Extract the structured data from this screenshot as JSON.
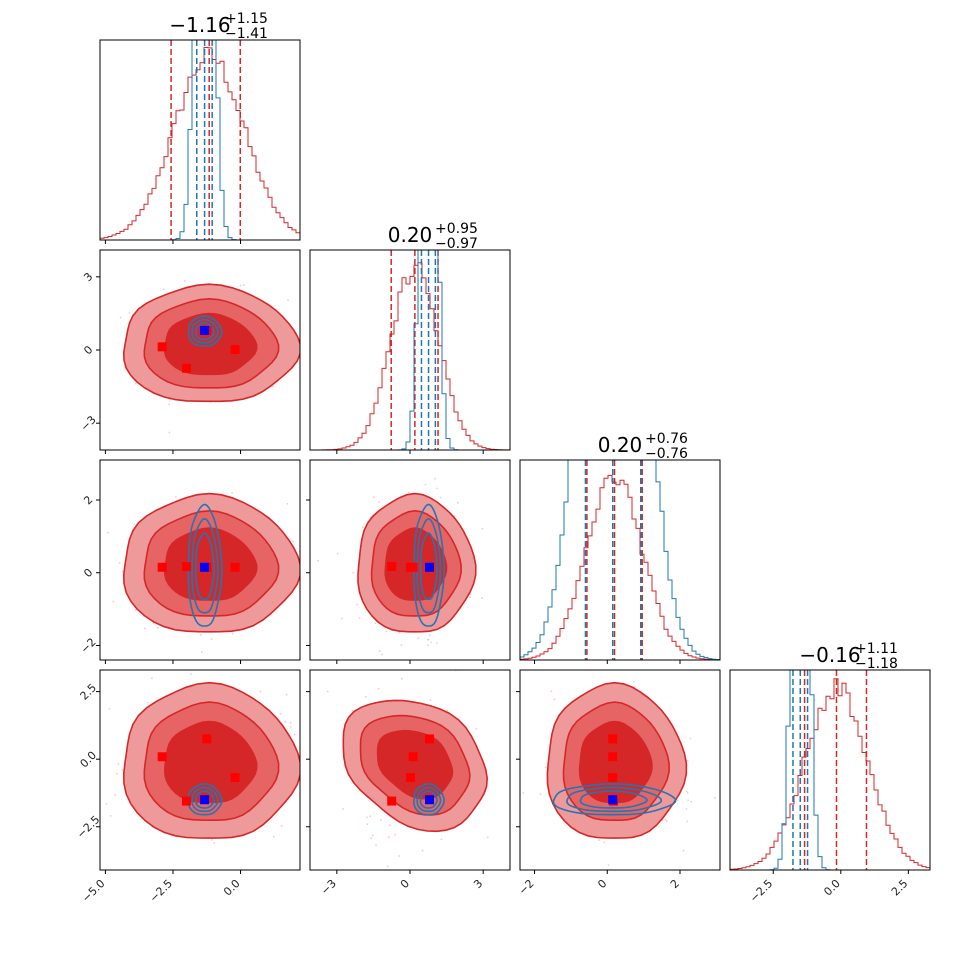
{
  "chart_data": {
    "type": "corner",
    "n_params": 4,
    "grid": false,
    "colors": {
      "red": "#d62728",
      "red_light": "#ee9a9b",
      "red_mid": "#e76465",
      "blue": "#1f77b4",
      "marker_blue": "#0000ff",
      "marker_red": "#ff0000"
    },
    "axes": [
      {
        "range": [
          -5.2,
          2.2
        ],
        "ticks": [
          -5.0,
          -2.5,
          0.0
        ],
        "tick_labels": [
          "−5.0",
          "−2.5",
          "0.0"
        ]
      },
      {
        "range": [
          -4.1,
          4.1
        ],
        "ticks": [
          -3,
          0,
          3
        ],
        "tick_labels": [
          "−3",
          "0",
          "3"
        ]
      },
      {
        "range": [
          -2.4,
          3.1
        ],
        "ticks": [
          -2,
          0,
          2
        ],
        "tick_labels": [
          "−2",
          "0",
          "2"
        ]
      },
      {
        "range": [
          -4.1,
          3.3
        ],
        "ticks": [
          -2.5,
          0.0,
          2.5
        ],
        "tick_labels": [
          "−2.5",
          "0.0",
          "2.5"
        ]
      }
    ],
    "titles": [
      {
        "main": "−1.16",
        "sup": "+1.15",
        "sub": "−1.41"
      },
      {
        "main": "0.20",
        "sup": "+0.95",
        "sub": "−0.97"
      },
      {
        "main": "0.20",
        "sup": "+0.76",
        "sub": "−0.76"
      },
      {
        "main": "−0.16",
        "sup": "+1.11",
        "sub": "−1.18"
      }
    ],
    "series": [
      {
        "name": "",
        "color": "#d62728",
        "mean": [
          -1.16,
          0.2,
          0.2,
          -0.16
        ],
        "std": [
          1.3,
          0.96,
          0.76,
          1.15
        ],
        "quantiles": [
          [
            -2.57,
            -1.16,
            -0.01
          ],
          [
            -0.77,
            0.2,
            1.15
          ],
          [
            -0.56,
            0.2,
            0.96
          ],
          [
            -1.34,
            -0.16,
            0.95
          ]
        ],
        "hist_peak_frac": 0.92
      },
      {
        "name": "",
        "color": "#1f77b4",
        "mean": [
          -1.33,
          0.76,
          0.15,
          -1.5
        ],
        "std": [
          0.28,
          0.28,
          0.76,
          0.26
        ],
        "quantiles": [
          [
            -1.62,
            -1.33,
            -1.05
          ],
          [
            0.47,
            0.76,
            1.04
          ],
          [
            -0.6,
            0.15,
            0.92
          ],
          [
            -1.77,
            -1.5,
            -1.23
          ]
        ],
        "hist_peak_frac": 3.5
      }
    ],
    "markers": {
      "red": [
        [
          -2.9,
          0.13,
          0.15,
          0.09
        ],
        [
          -2.0,
          -0.75,
          0.17,
          -1.55
        ],
        [
          -1.25,
          0.8,
          0.15,
          0.75
        ],
        [
          -0.2,
          0.02,
          0.15,
          -0.68
        ]
      ],
      "blue": [
        [
          -1.33,
          0.8,
          0.15,
          -1.5
        ]
      ]
    },
    "contour_levels": 3
  }
}
